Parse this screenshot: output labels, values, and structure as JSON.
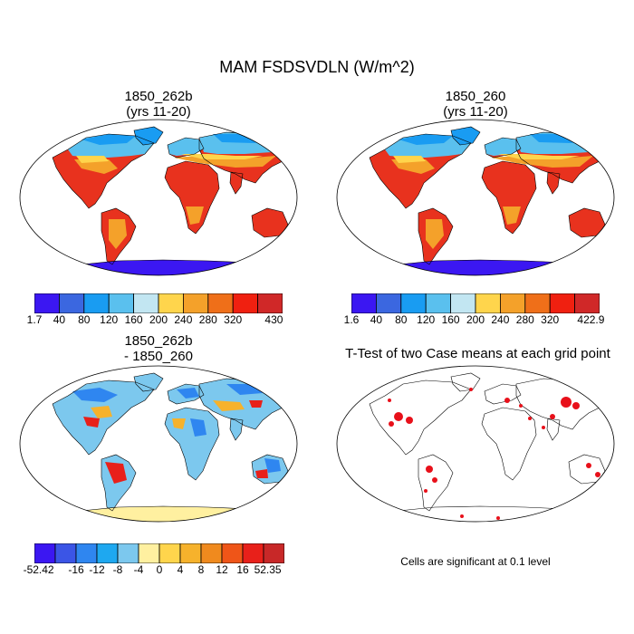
{
  "title": "MAM FSDSVDLN (W/m^2)",
  "panels": {
    "top_left": {
      "line1": "1850_262b",
      "line2": "(yrs 11-20)"
    },
    "top_right": {
      "line1": "1850_260",
      "line2": "(yrs 11-20)"
    },
    "bottom_left": {
      "line1": "1850_262b",
      "line2": "- 1850_260"
    },
    "bottom_right": {
      "title": "T-Test of two Case means at each grid point",
      "note": "Cells are significant at 0.1 level"
    }
  },
  "colorbars": {
    "abs_left": {
      "colors": [
        "#3b17f2",
        "#3b67e0",
        "#199cf2",
        "#5ac0ee",
        "#c2e6f2",
        "#ffd54c",
        "#f4a12a",
        "#ef6f19",
        "#f02010",
        "#d02828"
      ],
      "labels": [
        "1.7",
        "40",
        "80",
        "120",
        "160",
        "200",
        "240",
        "280",
        "320",
        "430"
      ]
    },
    "abs_right": {
      "colors": [
        "#3b17f2",
        "#3b67e0",
        "#199cf2",
        "#5ac0ee",
        "#c2e6f2",
        "#ffd54c",
        "#f4a12a",
        "#ef6f19",
        "#f02010",
        "#d02828"
      ],
      "labels": [
        "1.6",
        "40",
        "80",
        "120",
        "160",
        "200",
        "240",
        "280",
        "320",
        "422.9"
      ]
    },
    "diff": {
      "colors": [
        "#3b17f2",
        "#3b55e6",
        "#2f86f0",
        "#1ea8f0",
        "#7cc8ee",
        "#fff0a0",
        "#ffd54c",
        "#f6b22c",
        "#f08a1e",
        "#ef5518",
        "#e8201a",
        "#c82828"
      ],
      "labels": [
        "-52.42",
        "-16",
        "-12",
        "-8",
        "-4",
        "0",
        "4",
        "8",
        "12",
        "16",
        "52.35"
      ]
    }
  },
  "colors": {
    "land_hot": "#d83a2a",
    "land_warm": "#f4a12a",
    "land_cool": "#5ac0ee",
    "polar": "#3b17f2",
    "significant": "#e8101a"
  }
}
